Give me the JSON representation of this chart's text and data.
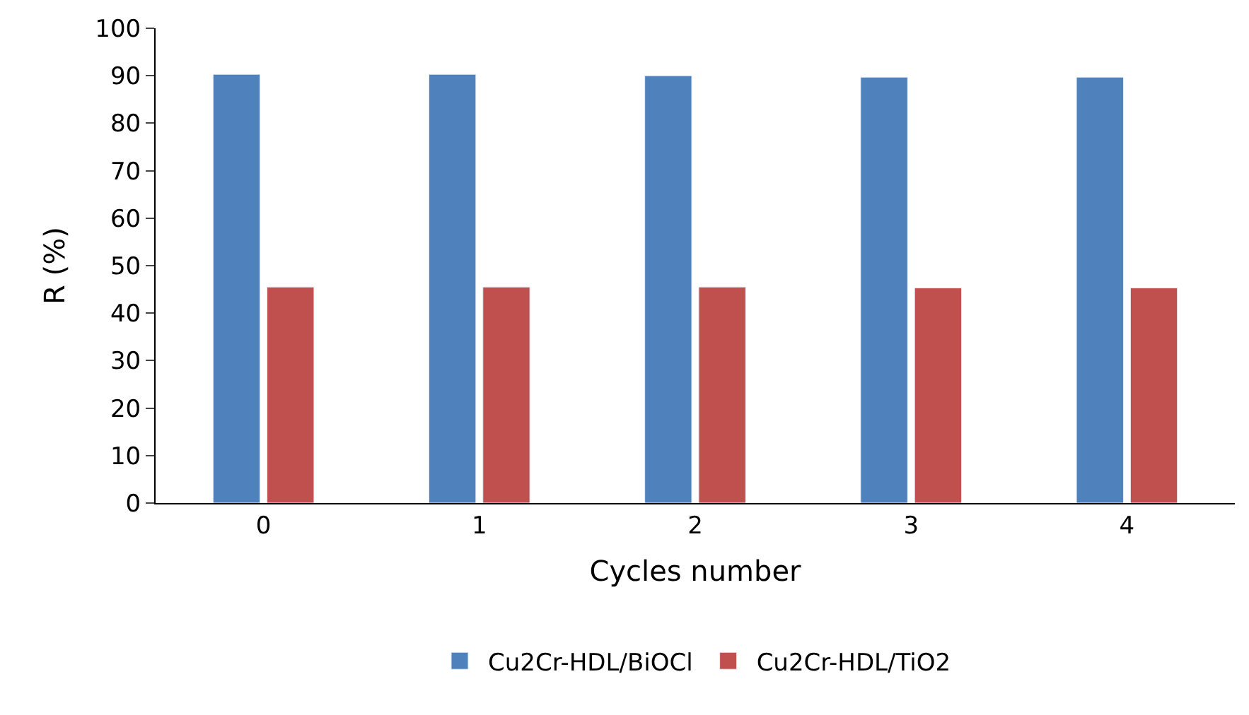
{
  "chart_data": {
    "type": "bar",
    "xlabel": "Cycles number",
    "ylabel": "R (%)",
    "categories": [
      "0",
      "1",
      "2",
      "3",
      "4"
    ],
    "series": [
      {
        "name": "Cu2Cr-HDL/BiOCl",
        "color": "#4f81bd",
        "values": [
          90.3,
          90.3,
          90.0,
          89.7,
          89.7
        ]
      },
      {
        "name": "Cu2Cr-HDL/TiO2",
        "color": "#c0504d",
        "values": [
          45.5,
          45.5,
          45.5,
          45.3,
          45.3
        ]
      }
    ],
    "ylim": [
      0,
      100
    ],
    "yticks": [
      0,
      10,
      20,
      30,
      40,
      50,
      60,
      70,
      80,
      90,
      100
    ],
    "legend": "bottom"
  }
}
